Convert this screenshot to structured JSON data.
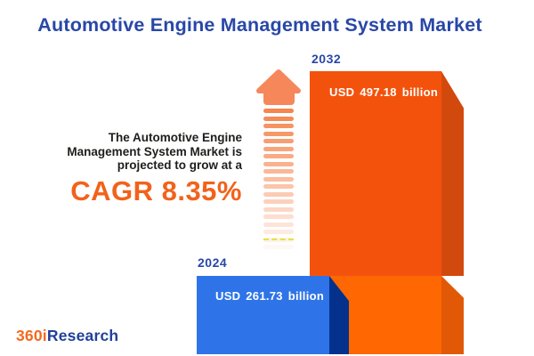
{
  "title": "Automotive Engine Management System Market",
  "annotation": {
    "line1": "The Automotive Engine",
    "line2": "Management System Market is",
    "line3": "projected to grow at a",
    "cagr_label": "CAGR 8.35%"
  },
  "chart_data": {
    "type": "bar",
    "title": "Automotive Engine Management System Market",
    "categories": [
      "2024",
      "2032"
    ],
    "values": [
      261.73,
      497.18
    ],
    "unit": "USD billion",
    "value_labels": [
      "USD 261.73 billion",
      "USD 497.18 billion"
    ],
    "cagr_percent": 8.35,
    "series_colors": [
      "#2e74e8",
      "#f3520c"
    ],
    "legend": "none",
    "grid": "off"
  },
  "bars": [
    {
      "year": "2024",
      "value_label": "USD 261.73 billion"
    },
    {
      "year": "2032",
      "value_label": "USD 497.18 billion"
    }
  ],
  "icons": {
    "growth_arrow": "up-arrow-fading-stripes"
  },
  "logo": {
    "prefix": "360i",
    "suffix": "Research"
  },
  "colors": {
    "title_blue": "#2847a8",
    "annotation_text": "#1e1e1c",
    "cagr_orange": "#f2621b",
    "bar_blue_face": "#2e74e8",
    "bar_blue_side": "#04318c",
    "bar_orange_top_face": "#f3520c",
    "bar_orange_top_side": "#d2490e",
    "bar_orange_bottom_face": "#ff6703",
    "bar_orange_bottom_side": "#e15906",
    "arrow_orange": "#f6875a",
    "logo_orange": "#f26a21",
    "logo_blue": "#21409a",
    "background": "#ffffff"
  }
}
